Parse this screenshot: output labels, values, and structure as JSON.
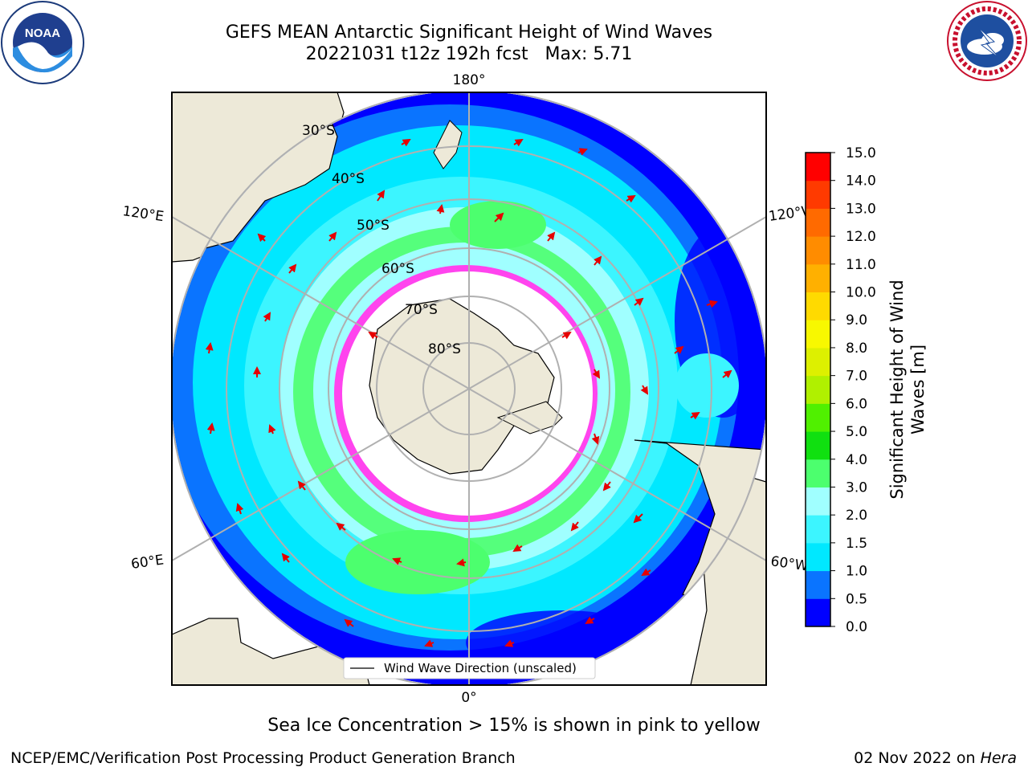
{
  "title": {
    "line1": "GEFS MEAN Antarctic Significant Height of Wind Waves",
    "line2": "20221031 t12z 192h fcst   Max: 5.71"
  },
  "map": {
    "projection": "south-polar-stereographic",
    "lat_labels": [
      "30°S",
      "40°S",
      "50°S",
      "60°S",
      "70°S",
      "80°S"
    ],
    "lon_labels": {
      "top": "180°",
      "upper_left": "120°E",
      "upper_right": "120°W",
      "lower_left": "60°E",
      "lower_right": "60°W",
      "bottom": "0°"
    },
    "legend_label": "Wind Wave Direction (unscaled)",
    "colors": {
      "land": "#ede9d8",
      "ice": "#ffffff",
      "ice_edge": "#ff44ee",
      "arrow": "#e60000",
      "grid": "#b0b0b0"
    }
  },
  "colorbar": {
    "label_line1": "Significant Height of Wind",
    "label_line2": "Waves [m]",
    "ticks": [
      "0.0",
      "0.5",
      "1.0",
      "1.5",
      "2.0",
      "3.0",
      "4.0",
      "5.0",
      "6.0",
      "7.0",
      "8.0",
      "9.0",
      "10.0",
      "11.0",
      "12.0",
      "13.0",
      "14.0",
      "15.0"
    ],
    "colors": [
      "#0000ff",
      "#0a74ff",
      "#00e8ff",
      "#3cf5ff",
      "#a0ffff",
      "#4cff6e",
      "#10e010",
      "#50f000",
      "#b0f000",
      "#ddf000",
      "#f8f800",
      "#ffda00",
      "#ffb000",
      "#ff8c00",
      "#ff6a00",
      "#ff3a00",
      "#ff0000"
    ]
  },
  "footer": {
    "ice_note": "Sea Ice Concentration > 15% is shown in pink to yellow",
    "branch": "NCEP/EMC/Verification Post Processing Product Generation Branch",
    "date": "02 Nov 2022 on ",
    "machine": "Hera"
  },
  "logos": {
    "left": "NOAA",
    "right": "NATIONAL WEATHER SERVICE"
  }
}
